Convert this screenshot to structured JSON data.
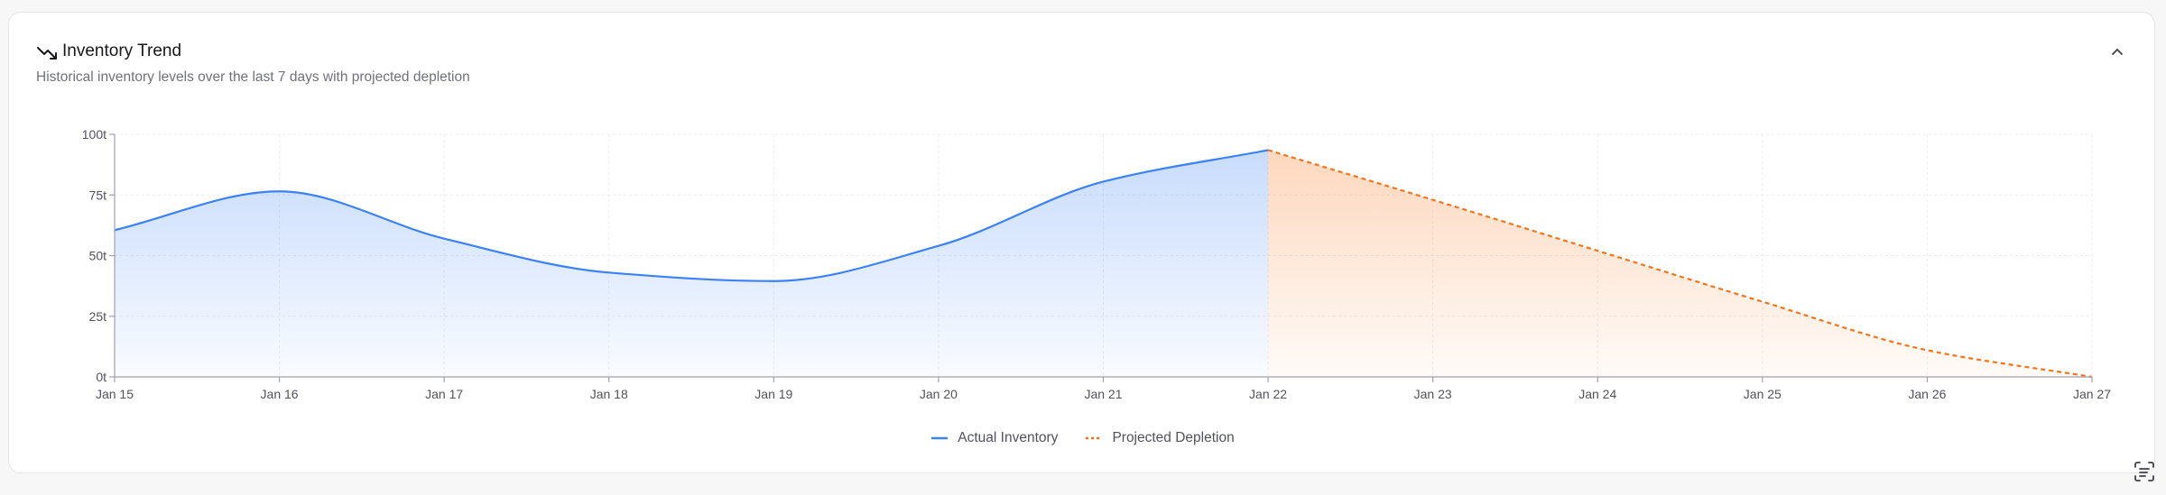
{
  "card": {
    "title": "Inventory Trend",
    "subtitle": "Historical inventory levels over the last 7 days with projected depletion",
    "title_icon": "trending-down-icon",
    "collapse_icon": "chevron-up-icon"
  },
  "colors": {
    "actual": "#3b82f6",
    "projected": "#f97316",
    "grid": "#ececef",
    "axis": "#a1a1aa",
    "tick_text": "#52525b"
  },
  "chart_data": {
    "type": "area",
    "x": [
      "Jan 15",
      "Jan 16",
      "Jan 17",
      "Jan 18",
      "Jan 19",
      "Jan 20",
      "Jan 21",
      "Jan 22",
      "Jan 23",
      "Jan 24",
      "Jan 25",
      "Jan 26",
      "Jan 27"
    ],
    "ylim": [
      0,
      100
    ],
    "yticks": [
      0,
      25,
      50,
      75,
      100
    ],
    "ytick_labels": [
      "0t",
      "25t",
      "50t",
      "75t",
      "100t"
    ],
    "grid": true,
    "legend_position": "bottom-center",
    "series": [
      {
        "name": "Actual Inventory",
        "style": "solid",
        "values": [
          60.5,
          76.5,
          57,
          43,
          39.5,
          54,
          80.5,
          93.5,
          null,
          null,
          null,
          null,
          null
        ]
      },
      {
        "name": "Projected Depletion",
        "style": "dashed",
        "values": [
          null,
          null,
          null,
          null,
          null,
          null,
          null,
          93.5,
          73,
          52,
          31,
          11,
          0
        ]
      }
    ]
  },
  "footer": {
    "corner_icon": "scan-text-icon"
  }
}
